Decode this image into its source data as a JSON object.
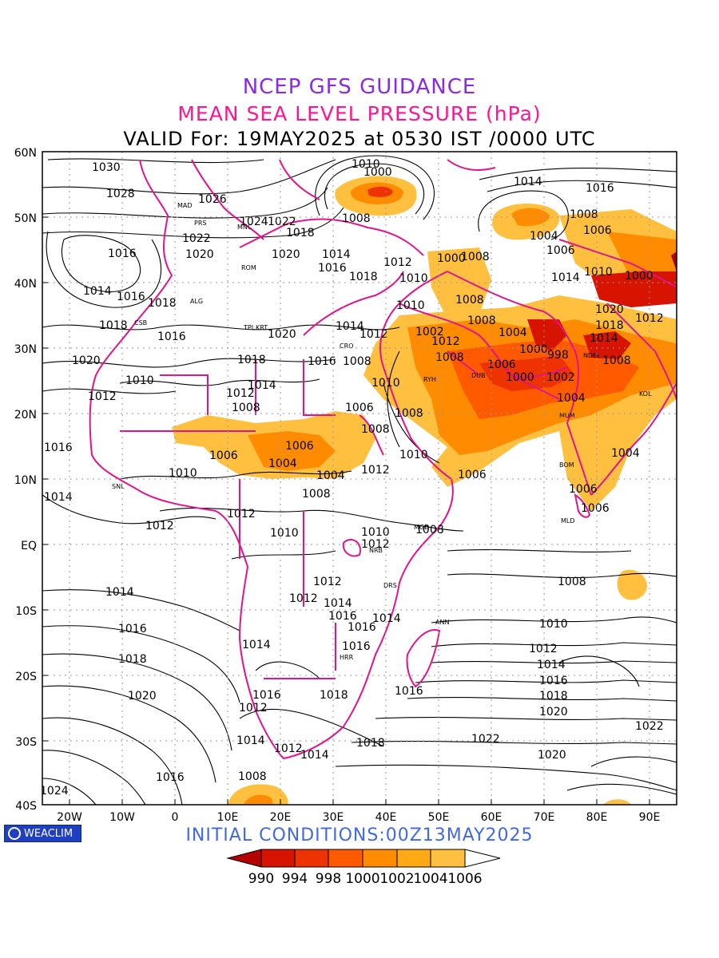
{
  "titles": {
    "line1": "NCEP GFS GUIDANCE",
    "line2": "MEAN SEA LEVEL PRESSURE (hPa)",
    "line3": "VALID For: 19MAY2025 at 0530 IST /0000 UTC"
  },
  "initial_conditions": "INITIAL CONDITIONS:00Z13MAY2025",
  "logo": "WEACLIM",
  "lat_labels": [
    "60N",
    "50N",
    "40N",
    "30N",
    "20N",
    "10N",
    "EQ",
    "10S",
    "20S",
    "30S",
    "40S"
  ],
  "lon_labels": [
    "20W",
    "10W",
    "0",
    "10E",
    "20E",
    "30E",
    "40E",
    "50E",
    "60E",
    "70E",
    "80E",
    "90E"
  ],
  "colorbar": {
    "labels": [
      "990",
      "994",
      "998",
      "1000",
      "1002",
      "1004",
      "1006"
    ],
    "colors": [
      "#b40000",
      "#d61400",
      "#ee3200",
      "#ff5a00",
      "#ff8c00",
      "#ffaa14",
      "#ffc040",
      "#ffffff"
    ]
  },
  "isobar_labels": [
    {
      "text": "1030"
    },
    {
      "text": "1028"
    },
    {
      "text": "1026"
    },
    {
      "text": "1024"
    },
    {
      "text": "1022"
    },
    {
      "text": "1020"
    },
    {
      "text": "1018"
    },
    {
      "text": "1016"
    },
    {
      "text": "1014"
    },
    {
      "text": "1012"
    },
    {
      "text": "1010"
    },
    {
      "text": "1008"
    },
    {
      "text": "1006"
    },
    {
      "text": "1004"
    },
    {
      "text": "1002"
    },
    {
      "text": "1000"
    },
    {
      "text": "998"
    }
  ],
  "station_labels": [
    "MAD",
    "PRS",
    "MNC",
    "ROM",
    "ALG",
    "CSB",
    "TPL",
    "KRT",
    "CRO",
    "DUB",
    "RYH",
    "SNL",
    "MUM",
    "MLD",
    "NRB",
    "DRS",
    "ANN",
    "HRR",
    "NDEL",
    "BOM",
    "KOL",
    "MGD"
  ]
}
